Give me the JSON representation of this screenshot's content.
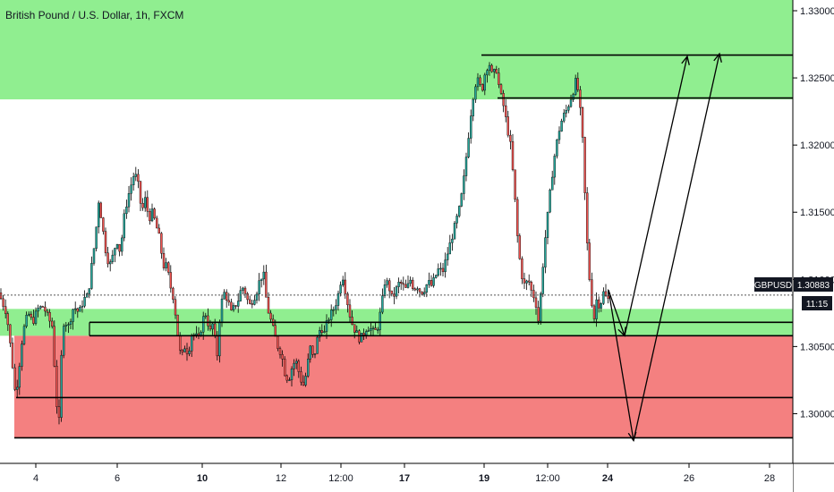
{
  "chart_data": {
    "type": "candlestick",
    "title": "British Pound / U.S. Dollar, 1h, FXCM",
    "symbol": "GBPUSD",
    "last_price": "1.30883",
    "countdown": "11:15",
    "ylim": [
      1.2963,
      1.3308
    ],
    "y_ticks": [
      "1.33000",
      "1.32500",
      "1.32000",
      "1.31500",
      "1.31000",
      "1.30500",
      "1.30000"
    ],
    "x_ticks": [
      "4",
      "6",
      "10",
      "12",
      "12:00",
      "17",
      "19",
      "12:00",
      "24",
      "26",
      "28"
    ],
    "colors": {
      "up": "#26a69a",
      "down": "#ef5350",
      "supply_zone": "#90ee90",
      "demand_zone": "#f48080",
      "lines": "#000000"
    },
    "zones": [
      {
        "type": "resistance",
        "from": 1.3234,
        "to": 1.3308
      },
      {
        "type": "support",
        "from": 1.3058,
        "to": 1.3078
      },
      {
        "type": "support",
        "from": 1.2982,
        "to": 1.3058,
        "color": "demand"
      }
    ],
    "levels": [
      1.3267,
      1.3235,
      1.3068,
      1.3058,
      1.3012,
      1.2982
    ],
    "path": [
      [
        0,
        1.309
      ],
      [
        9,
        1.3075
      ],
      [
        15,
        1.304
      ],
      [
        19,
        1.3012
      ],
      [
        23,
        1.3035
      ],
      [
        27,
        1.306
      ],
      [
        33,
        1.3075
      ],
      [
        38,
        1.3068
      ],
      [
        44,
        1.3078
      ],
      [
        50,
        1.308
      ],
      [
        55,
        1.3072
      ],
      [
        60,
        1.3065
      ],
      [
        63,
        1.303
      ],
      [
        67,
        1.2983
      ],
      [
        70,
        1.304
      ],
      [
        73,
        1.307
      ],
      [
        78,
        1.3065
      ],
      [
        84,
        1.308
      ],
      [
        90,
        1.3075
      ],
      [
        95,
        1.3085
      ],
      [
        100,
        1.3088
      ],
      [
        104,
        1.311
      ],
      [
        108,
        1.313
      ],
      [
        112,
        1.316
      ],
      [
        116,
        1.314
      ],
      [
        120,
        1.312
      ],
      [
        124,
        1.311
      ],
      [
        128,
        1.3118
      ],
      [
        132,
        1.313
      ],
      [
        136,
        1.312
      ],
      [
        140,
        1.3145
      ],
      [
        144,
        1.316
      ],
      [
        148,
        1.317
      ],
      [
        152,
        1.318
      ],
      [
        156,
        1.317
      ],
      [
        160,
        1.315
      ],
      [
        164,
        1.316
      ],
      [
        168,
        1.3145
      ],
      [
        172,
        1.315
      ],
      [
        176,
        1.314
      ],
      [
        180,
        1.313
      ],
      [
        184,
        1.311
      ],
      [
        188,
        1.311
      ],
      [
        192,
        1.3095
      ],
      [
        196,
        1.3085
      ],
      [
        200,
        1.306
      ],
      [
        204,
        1.304
      ],
      [
        208,
        1.305
      ],
      [
        212,
        1.3045
      ],
      [
        216,
        1.306
      ],
      [
        220,
        1.3058
      ],
      [
        224,
        1.3055
      ],
      [
        228,
        1.307
      ],
      [
        232,
        1.3075
      ],
      [
        236,
        1.306
      ],
      [
        240,
        1.3068
      ],
      [
        244,
        1.304
      ],
      [
        248,
        1.308
      ],
      [
        252,
        1.309
      ],
      [
        256,
        1.3085
      ],
      [
        260,
        1.3075
      ],
      [
        264,
        1.308
      ],
      [
        268,
        1.3085
      ],
      [
        272,
        1.3095
      ],
      [
        276,
        1.309
      ],
      [
        280,
        1.308
      ],
      [
        284,
        1.3085
      ],
      [
        288,
        1.309
      ],
      [
        292,
        1.31
      ],
      [
        296,
        1.3105
      ],
      [
        300,
        1.308
      ],
      [
        304,
        1.307
      ],
      [
        308,
        1.306
      ],
      [
        312,
        1.305
      ],
      [
        316,
        1.3045
      ],
      [
        320,
        1.303
      ],
      [
        324,
        1.3025
      ],
      [
        328,
        1.3035
      ],
      [
        332,
        1.304
      ],
      [
        336,
        1.303
      ],
      [
        340,
        1.302
      ],
      [
        344,
        1.303
      ],
      [
        348,
        1.305
      ],
      [
        352,
        1.304
      ],
      [
        356,
        1.3055
      ],
      [
        360,
        1.3065
      ],
      [
        364,
        1.306
      ],
      [
        368,
        1.307
      ],
      [
        372,
        1.3075
      ],
      [
        376,
        1.308
      ],
      [
        380,
        1.309
      ],
      [
        384,
        1.3105
      ],
      [
        388,
        1.309
      ],
      [
        392,
        1.3075
      ],
      [
        396,
        1.3065
      ],
      [
        400,
        1.306
      ],
      [
        404,
        1.3055
      ],
      [
        408,
        1.306
      ],
      [
        412,
        1.3065
      ],
      [
        416,
        1.3063
      ],
      [
        420,
        1.306
      ],
      [
        424,
        1.3065
      ],
      [
        428,
        1.308
      ],
      [
        432,
        1.31
      ],
      [
        436,
        1.3095
      ],
      [
        440,
        1.3085
      ],
      [
        444,
        1.3092
      ],
      [
        448,
        1.3098
      ],
      [
        452,
        1.3095
      ],
      [
        456,
        1.3092
      ],
      [
        460,
        1.31
      ],
      [
        464,
        1.3093
      ],
      [
        468,
        1.3095
      ],
      [
        472,
        1.309
      ],
      [
        476,
        1.3093
      ],
      [
        480,
        1.3098
      ],
      [
        484,
        1.3095
      ],
      [
        488,
        1.3102
      ],
      [
        492,
        1.3108
      ],
      [
        496,
        1.3105
      ],
      [
        500,
        1.3115
      ],
      [
        504,
        1.3125
      ],
      [
        508,
        1.3135
      ],
      [
        512,
        1.3145
      ],
      [
        516,
        1.3155
      ],
      [
        520,
        1.3175
      ],
      [
        524,
        1.32
      ],
      [
        528,
        1.3225
      ],
      [
        532,
        1.3245
      ],
      [
        536,
        1.3248
      ],
      [
        540,
        1.324
      ],
      [
        544,
        1.3255
      ],
      [
        548,
        1.3262
      ],
      [
        552,
        1.325
      ],
      [
        556,
        1.3258
      ],
      [
        560,
        1.324
      ],
      [
        564,
        1.323
      ],
      [
        568,
        1.3215
      ],
      [
        572,
        1.32
      ],
      [
        576,
        1.317
      ],
      [
        580,
        1.313
      ],
      [
        584,
        1.3105
      ],
      [
        588,
        1.3095
      ],
      [
        592,
        1.31
      ],
      [
        596,
        1.309
      ],
      [
        600,
        1.3085
      ],
      [
        603,
        1.3068
      ],
      [
        606,
        1.309
      ],
      [
        610,
        1.3125
      ],
      [
        614,
        1.315
      ],
      [
        618,
        1.3175
      ],
      [
        622,
        1.3195
      ],
      [
        626,
        1.321
      ],
      [
        630,
        1.322
      ],
      [
        634,
        1.3225
      ],
      [
        638,
        1.3232
      ],
      [
        642,
        1.324
      ],
      [
        646,
        1.325
      ],
      [
        650,
        1.3225
      ],
      [
        653,
        1.32
      ],
      [
        656,
        1.315
      ],
      [
        659,
        1.311
      ],
      [
        662,
        1.309
      ],
      [
        665,
        1.3068
      ],
      [
        668,
        1.3085
      ],
      [
        672,
        1.308
      ],
      [
        676,
        1.309
      ],
      [
        680,
        1.3085
      ]
    ],
    "projections": [
      {
        "points": [
          [
            680,
            1.3092
          ],
          [
            698,
            1.3058
          ]
        ]
      },
      {
        "points": [
          [
            698,
            1.3058
          ],
          [
            768,
            1.3266
          ]
        ]
      },
      {
        "points": [
          [
            680,
            1.3092
          ],
          [
            708,
            1.298
          ]
        ]
      },
      {
        "points": [
          [
            708,
            1.298
          ],
          [
            804,
            1.3268
          ]
        ]
      }
    ]
  }
}
